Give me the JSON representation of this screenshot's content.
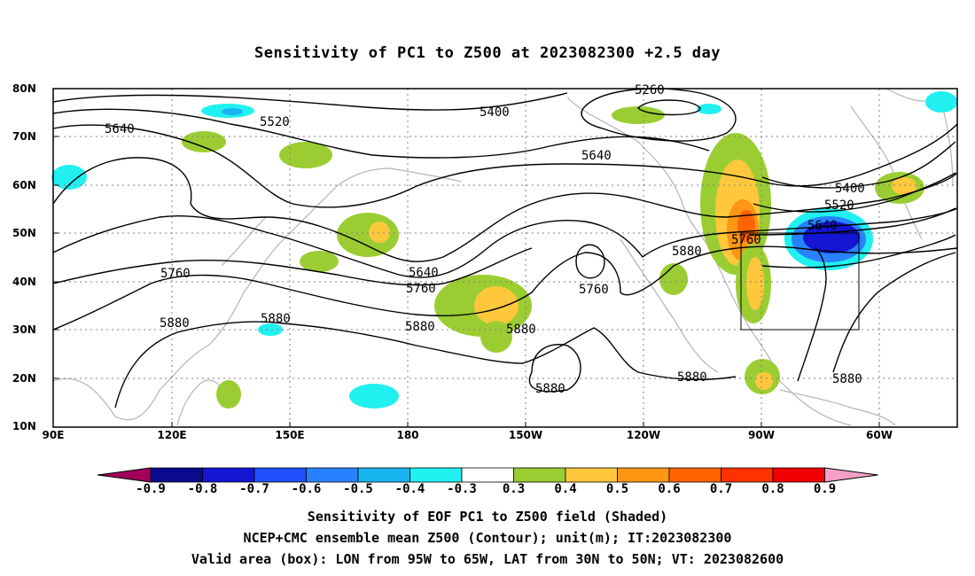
{
  "title": "Sensitivity of PC1 to Z500 at 2023082300 +2.5 day",
  "axes": {
    "lat_labels": [
      "80N",
      "70N",
      "60N",
      "50N",
      "40N",
      "30N",
      "20N",
      "10N"
    ],
    "lon_labels": [
      "90E",
      "120E",
      "150E",
      "180",
      "150W",
      "120W",
      "90W",
      "60W"
    ]
  },
  "contour_labels": [
    "5260",
    "5400",
    "5520",
    "5640",
    "5640",
    "5760",
    "5760",
    "5880",
    "5880",
    "5880",
    "5880",
    "5880",
    "5880",
    "5640",
    "5760",
    "5880",
    "5400",
    "5520",
    "5640",
    "5760",
    "5880"
  ],
  "colorbar": {
    "labels": [
      "-0.9",
      "-0.8",
      "-0.7",
      "-0.6",
      "-0.5",
      "-0.4",
      "-0.3",
      "0.3",
      "0.4",
      "0.5",
      "0.6",
      "0.7",
      "0.8",
      "0.9"
    ],
    "colors": [
      "#a0005a",
      "#0a0a8c",
      "#1414d2",
      "#2050ff",
      "#2882ff",
      "#18b4f0",
      "#20f0f0",
      "#ffffff",
      "#9bcd32",
      "#ffc83c",
      "#ff9614",
      "#ff6400",
      "#ff3200",
      "#f00000",
      "#f5a0c8"
    ]
  },
  "valid_box": {
    "lon_from": "95W",
    "lon_to": "65W",
    "lat_from": "30N",
    "lat_to": "50N"
  },
  "captions": [
    "Sensitivity of EOF PC1 to Z500 field (Shaded)",
    "NCEP+CMC ensemble mean Z500 (Contour); unit(m); IT:2023082300",
    "Valid area (box): LON from 95W to 65W, LAT from 30N to 50N; VT: 2023082600"
  ]
}
